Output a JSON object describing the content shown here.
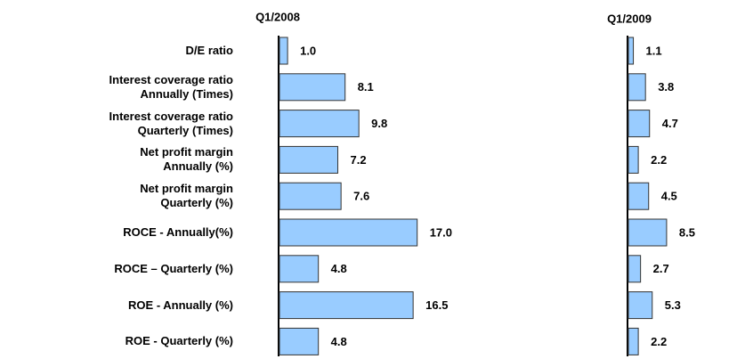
{
  "chart_data": [
    {
      "type": "barh",
      "title": "Q1/2008",
      "categories": [
        "D/E ratio",
        "Interest coverage ratio\nAnnually (Times)",
        "Interest coverage ratio\nQuarterly (Times)",
        "Net profit margin\nAnnually (%)",
        "Net profit margin\nQuarterly (%)",
        "ROCE - Annually(%)",
        "ROCE – Quarterly (%)",
        "ROE - Annually (%)",
        "ROE - Quarterly (%)"
      ],
      "values": [
        1.0,
        8.1,
        9.8,
        7.2,
        7.6,
        17.0,
        4.8,
        16.5,
        4.8
      ],
      "value_labels": [
        "1.0",
        "8.1",
        "9.8",
        "7.2",
        "7.6",
        "17.0",
        "4.8",
        "16.5",
        "4.8"
      ],
      "color": "#99ccff"
    },
    {
      "type": "barh",
      "title": "Q1/2009",
      "values": [
        1.1,
        3.8,
        4.7,
        2.2,
        4.5,
        8.5,
        2.7,
        5.3,
        2.2
      ],
      "value_labels": [
        "1.1",
        "3.8",
        "4.7",
        "2.2",
        "4.5",
        "8.5",
        "2.7",
        "5.3",
        "2.2"
      ],
      "color": "#99ccff"
    }
  ]
}
